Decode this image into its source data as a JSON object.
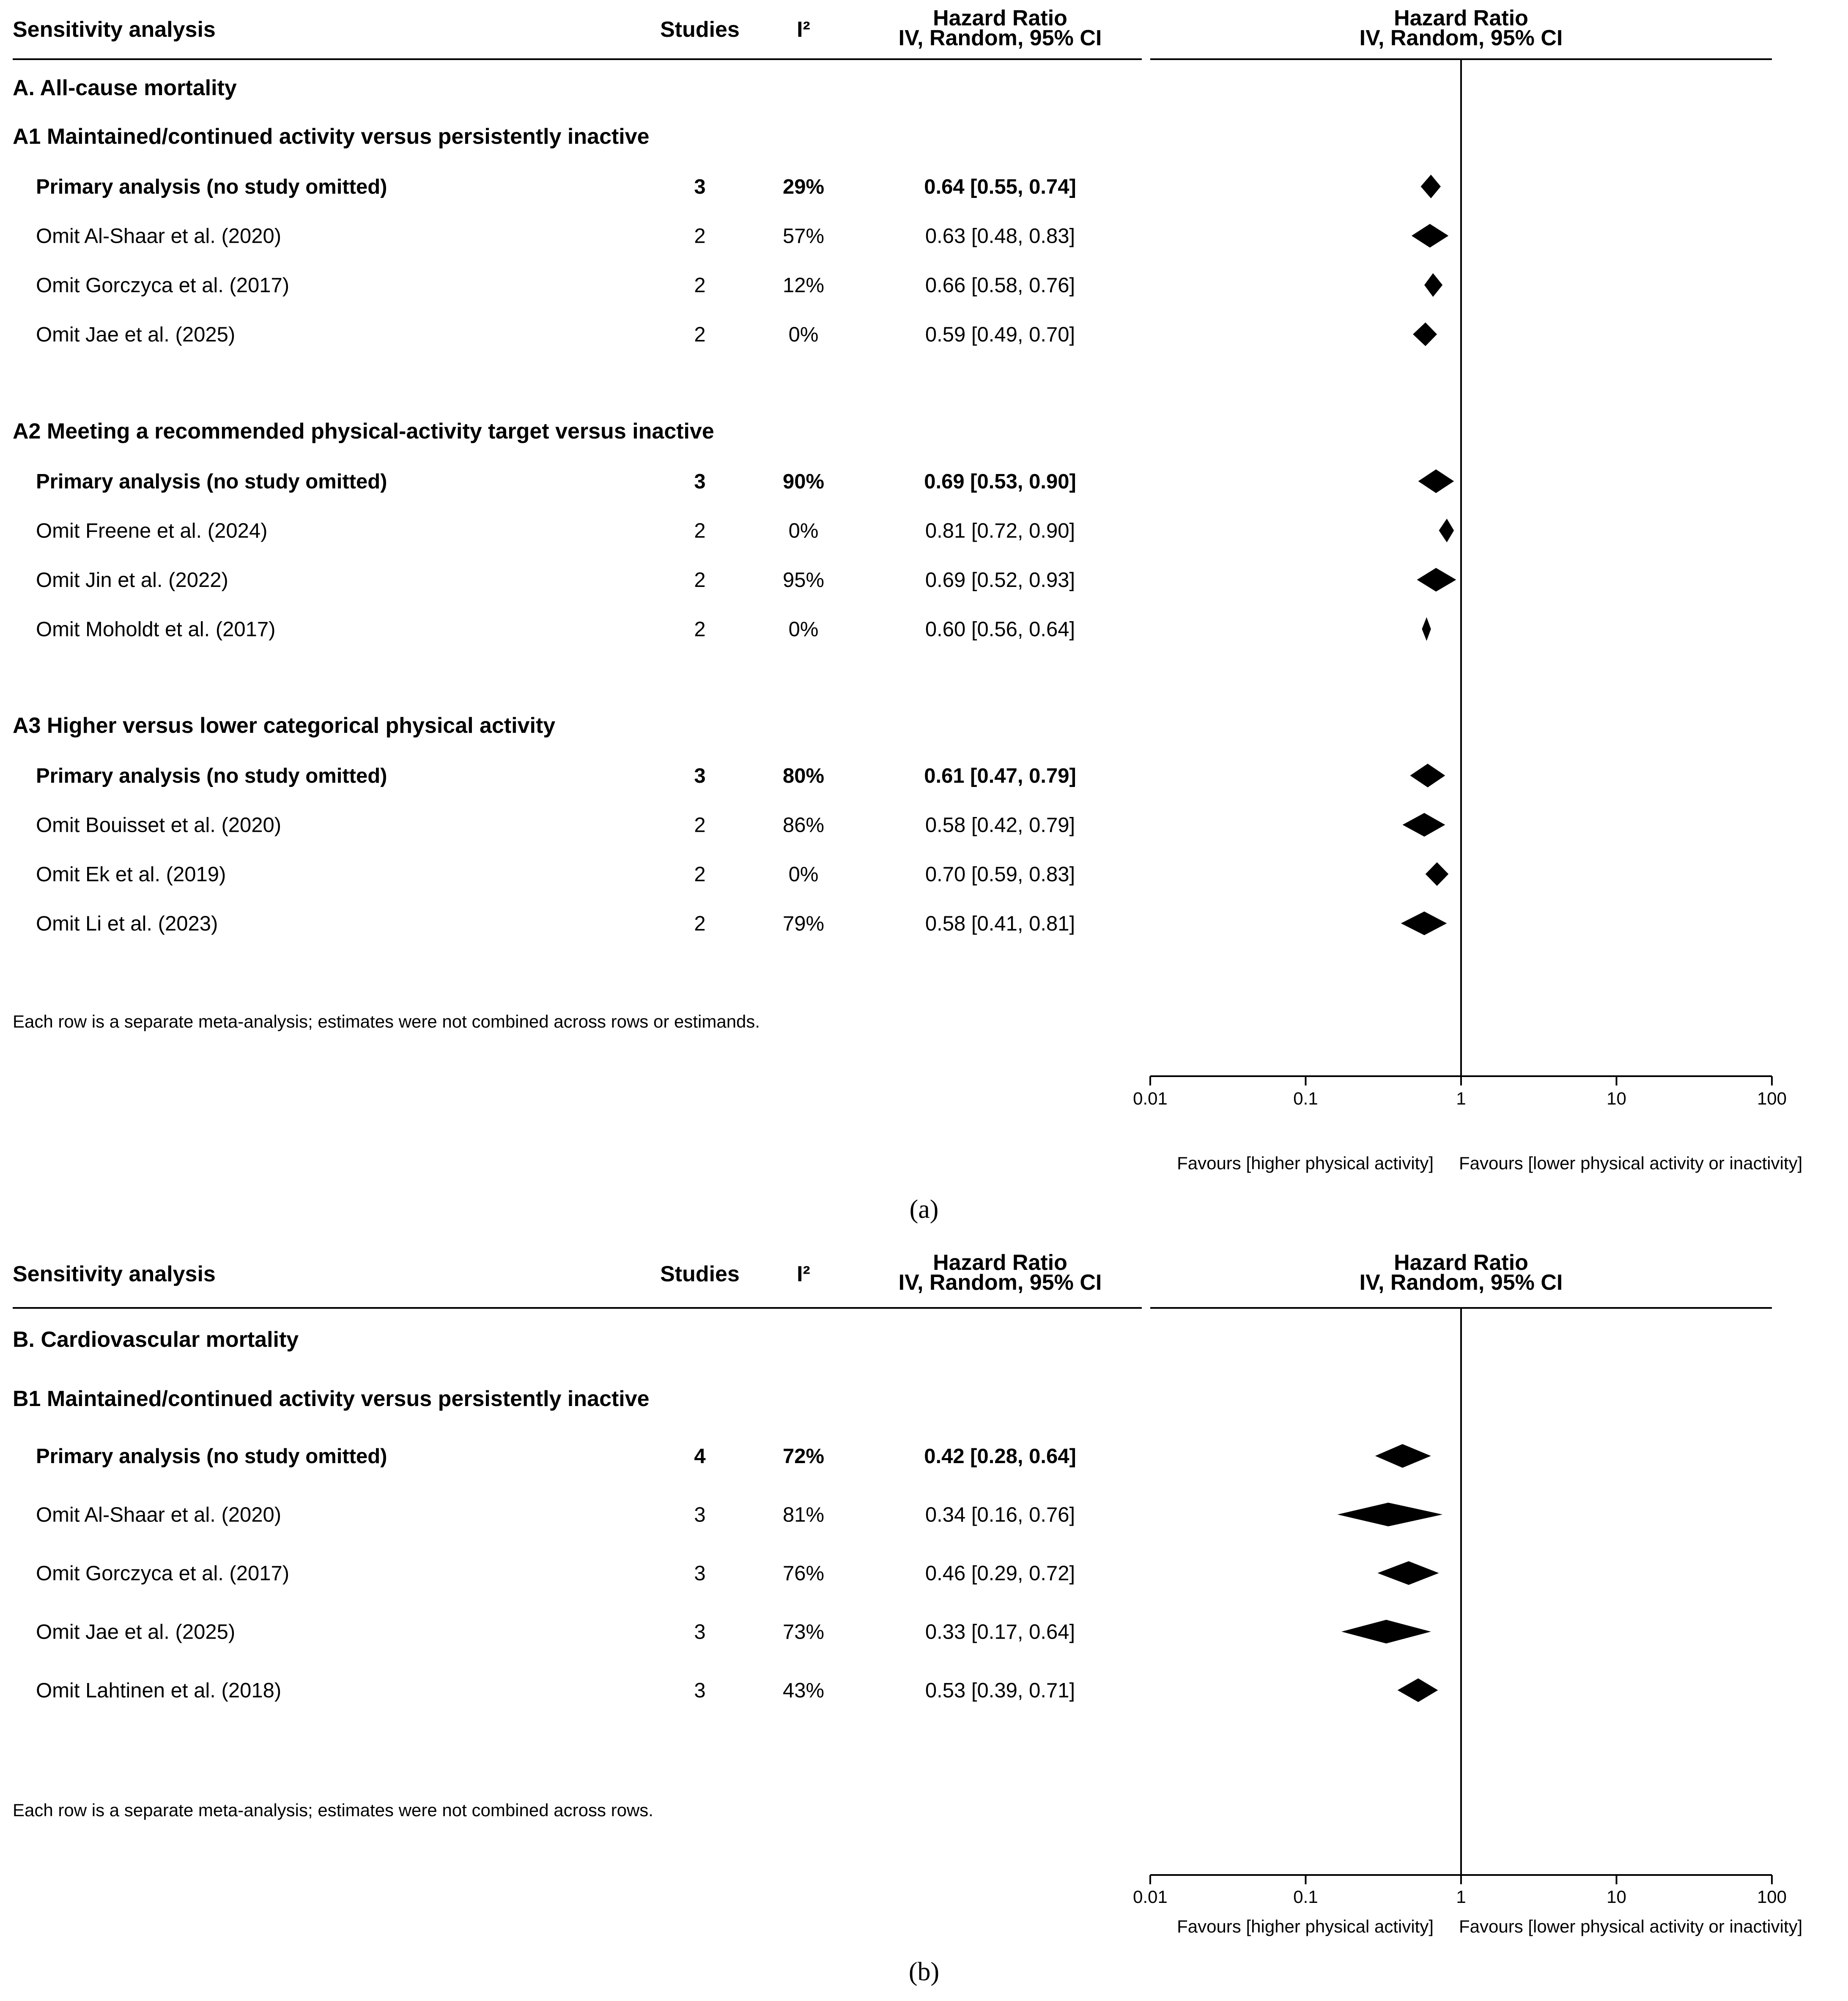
{
  "colors": {
    "ink": "#000000",
    "background": "#ffffff"
  },
  "chart_data": [
    {
      "type": "forest",
      "panel_label": "(a)",
      "columns": {
        "label": "Sensitivity analysis",
        "studies": "Studies",
        "i2": "I²",
        "effect_line1": "Hazard Ratio",
        "effect_line2": "IV, Random, 95% CI",
        "plot_line1": "Hazard Ratio",
        "plot_line2": "IV, Random, 95% CI"
      },
      "x_scale": "log",
      "xlim": [
        0.01,
        100
      ],
      "x_ticks": [
        "0.01",
        "0.1",
        "1",
        "10",
        "100"
      ],
      "x_tick_values": [
        0.01,
        0.1,
        1,
        10,
        100
      ],
      "reference_line": 1,
      "favours_left": "Favours [higher physical activity]",
      "favours_right": "Favours [lower physical activity or inactivity]",
      "outcome": "A. All-cause mortality",
      "groups": [
        {
          "title": "A1 Maintained/continued activity versus persistently inactive",
          "rows": [
            {
              "label": "Primary analysis (no study omitted)",
              "studies": "3",
              "i2": "29%",
              "ci_text": "0.64 [0.55, 0.74]",
              "hr": 0.64,
              "lo": 0.55,
              "hi": 0.74,
              "bold": true
            },
            {
              "label": "Omit Al-Shaar et al. (2020)",
              "studies": "2",
              "i2": "57%",
              "ci_text": "0.63 [0.48, 0.83]",
              "hr": 0.63,
              "lo": 0.48,
              "hi": 0.83,
              "bold": false
            },
            {
              "label": "Omit Gorczyca et al. (2017)",
              "studies": "2",
              "i2": "12%",
              "ci_text": "0.66 [0.58, 0.76]",
              "hr": 0.66,
              "lo": 0.58,
              "hi": 0.76,
              "bold": false
            },
            {
              "label": "Omit Jae et al. (2025)",
              "studies": "2",
              "i2": "0%",
              "ci_text": "0.59 [0.49, 0.70]",
              "hr": 0.59,
              "lo": 0.49,
              "hi": 0.7,
              "bold": false
            }
          ]
        },
        {
          "title": "A2 Meeting a recommended physical-activity target versus inactive",
          "rows": [
            {
              "label": "Primary analysis (no study omitted)",
              "studies": "3",
              "i2": "90%",
              "ci_text": "0.69 [0.53, 0.90]",
              "hr": 0.69,
              "lo": 0.53,
              "hi": 0.9,
              "bold": true
            },
            {
              "label": "Omit Freene et al. (2024)",
              "studies": "2",
              "i2": "0%",
              "ci_text": "0.81 [0.72, 0.90]",
              "hr": 0.81,
              "lo": 0.72,
              "hi": 0.9,
              "bold": false
            },
            {
              "label": "Omit Jin et al. (2022)",
              "studies": "2",
              "i2": "95%",
              "ci_text": "0.69 [0.52, 0.93]",
              "hr": 0.69,
              "lo": 0.52,
              "hi": 0.93,
              "bold": false
            },
            {
              "label": "Omit Moholdt et al. (2017)",
              "studies": "2",
              "i2": "0%",
              "ci_text": "0.60 [0.56, 0.64]",
              "hr": 0.6,
              "lo": 0.56,
              "hi": 0.64,
              "bold": false
            }
          ]
        },
        {
          "title": "A3 Higher versus lower categorical physical activity",
          "rows": [
            {
              "label": "Primary analysis (no study omitted)",
              "studies": "3",
              "i2": "80%",
              "ci_text": "0.61 [0.47, 0.79]",
              "hr": 0.61,
              "lo": 0.47,
              "hi": 0.79,
              "bold": true
            },
            {
              "label": "Omit Bouisset et al. (2020)",
              "studies": "2",
              "i2": "86%",
              "ci_text": "0.58 [0.42, 0.79]",
              "hr": 0.58,
              "lo": 0.42,
              "hi": 0.79,
              "bold": false
            },
            {
              "label": "Omit Ek et al. (2019)",
              "studies": "2",
              "i2": "0%",
              "ci_text": "0.70 [0.59, 0.83]",
              "hr": 0.7,
              "lo": 0.59,
              "hi": 0.83,
              "bold": false
            },
            {
              "label": "Omit Li et al. (2023)",
              "studies": "2",
              "i2": "79%",
              "ci_text": "0.58 [0.41, 0.81]",
              "hr": 0.58,
              "lo": 0.41,
              "hi": 0.81,
              "bold": false
            }
          ]
        }
      ],
      "note": "Each row is a separate meta-analysis; estimates were not combined across rows or estimands."
    },
    {
      "type": "forest",
      "panel_label": "(b)",
      "columns": {
        "label": "Sensitivity analysis",
        "studies": "Studies",
        "i2": "I²",
        "effect_line1": "Hazard Ratio",
        "effect_line2": "IV, Random, 95% CI",
        "plot_line1": "Hazard Ratio",
        "plot_line2": "IV, Random, 95% CI"
      },
      "x_scale": "log",
      "xlim": [
        0.01,
        100
      ],
      "x_ticks": [
        "0.01",
        "0.1",
        "1",
        "10",
        "100"
      ],
      "x_tick_values": [
        0.01,
        0.1,
        1,
        10,
        100
      ],
      "reference_line": 1,
      "favours_left": "Favours [higher physical activity]",
      "favours_right": "Favours [lower physical activity or inactivity]",
      "outcome": "B. Cardiovascular mortality",
      "groups": [
        {
          "title": "B1 Maintained/continued activity versus persistently inactive",
          "rows": [
            {
              "label": "Primary analysis (no study omitted)",
              "studies": "4",
              "i2": "72%",
              "ci_text": "0.42 [0.28, 0.64]",
              "hr": 0.42,
              "lo": 0.28,
              "hi": 0.64,
              "bold": true
            },
            {
              "label": "Omit Al-Shaar et al. (2020)",
              "studies": "3",
              "i2": "81%",
              "ci_text": "0.34 [0.16, 0.76]",
              "hr": 0.34,
              "lo": 0.16,
              "hi": 0.76,
              "bold": false
            },
            {
              "label": "Omit Gorczyca et al. (2017)",
              "studies": "3",
              "i2": "76%",
              "ci_text": "0.46 [0.29, 0.72]",
              "hr": 0.46,
              "lo": 0.29,
              "hi": 0.72,
              "bold": false
            },
            {
              "label": "Omit Jae et al. (2025)",
              "studies": "3",
              "i2": "73%",
              "ci_text": "0.33 [0.17, 0.64]",
              "hr": 0.33,
              "lo": 0.17,
              "hi": 0.64,
              "bold": false
            },
            {
              "label": "Omit Lahtinen et al. (2018)",
              "studies": "3",
              "i2": "43%",
              "ci_text": "0.53 [0.39, 0.71]",
              "hr": 0.53,
              "lo": 0.39,
              "hi": 0.71,
              "bold": false
            }
          ]
        }
      ],
      "note": "Each row is a separate meta-analysis; estimates were not combined across rows."
    }
  ]
}
